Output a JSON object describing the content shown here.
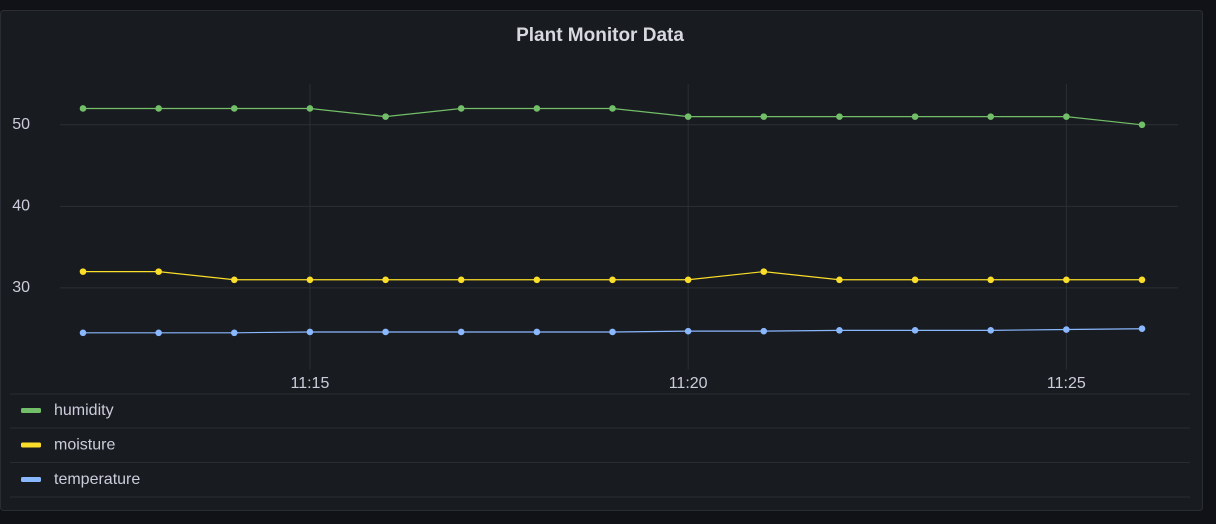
{
  "chart_data": {
    "type": "line",
    "title": "Plant Monitor Data",
    "x": [
      "11:12",
      "11:13",
      "11:14",
      "11:15",
      "11:16",
      "11:17",
      "11:18",
      "11:19",
      "11:20",
      "11:21",
      "11:22",
      "11:23",
      "11:24",
      "11:25",
      "11:26"
    ],
    "xticks": [
      "11:15",
      "11:20",
      "11:25"
    ],
    "ylim": [
      20,
      55
    ],
    "yticks": [
      30,
      40,
      50
    ],
    "grid": true,
    "series": [
      {
        "name": "humidity",
        "color": "#73bf69",
        "values": [
          52,
          52,
          52,
          52,
          51,
          52,
          52,
          52,
          51,
          51,
          51,
          51,
          51,
          51,
          50
        ]
      },
      {
        "name": "moisture",
        "color": "#fade2a",
        "values": [
          32,
          32,
          31,
          31,
          31,
          31,
          31,
          31,
          31,
          32,
          31,
          31,
          31,
          31,
          31
        ]
      },
      {
        "name": "temperature",
        "color": "#8ab8ff",
        "values": [
          24.5,
          24.5,
          24.5,
          24.6,
          24.6,
          24.6,
          24.6,
          24.6,
          24.7,
          24.7,
          24.8,
          24.8,
          24.8,
          24.9,
          25.0
        ]
      }
    ]
  }
}
